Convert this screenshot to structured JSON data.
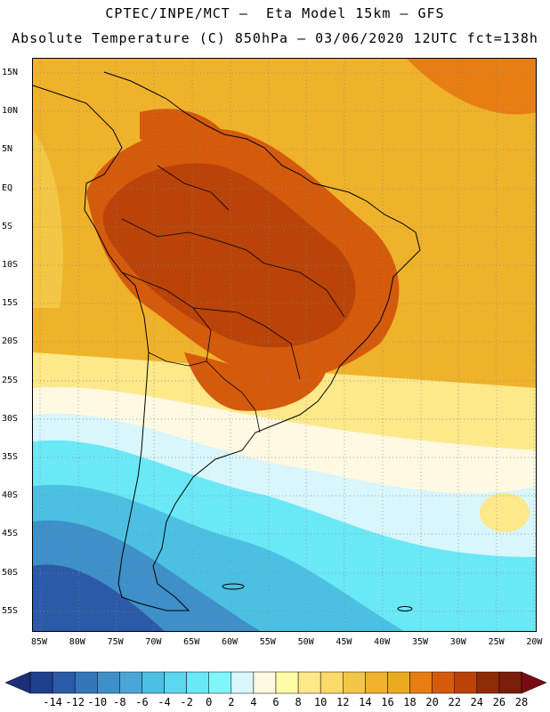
{
  "header": {
    "title_line1": "CPTEC/INPE/MCT –  Eta Model 15km – GFS",
    "title_line2": "Absolute Temperature (C) 850hPa – 03/06/2020 12UTC fct=138h"
  },
  "map": {
    "latitude_labels": [
      "15N",
      "10N",
      "5N",
      "EQ",
      "5S",
      "10S",
      "15S",
      "20S",
      "25S",
      "30S",
      "35S",
      "40S",
      "45S",
      "50S",
      "55S"
    ],
    "longitude_labels": [
      "85W",
      "80W",
      "75W",
      "70W",
      "65W",
      "60W",
      "55W",
      "50W",
      "45W",
      "40W",
      "35W",
      "30W",
      "25W",
      "20W"
    ],
    "gridlines": "dotted"
  },
  "colorbar": {
    "labels": [
      "-14",
      "-12",
      "-10",
      "-8",
      "-6",
      "-4",
      "-2",
      "0",
      "2",
      "4",
      "6",
      "8",
      "10",
      "12",
      "14",
      "16",
      "18",
      "20",
      "22",
      "24",
      "26",
      "28"
    ],
    "colors": [
      "#1f3f8f",
      "#2a5aa8",
      "#3376ba",
      "#3f8fc9",
      "#4aa6d6",
      "#4cc0e2",
      "#5ad6ee",
      "#6be8f5",
      "#7ff6fb",
      "#d8f6fb",
      "#fff8e2",
      "#fffca8",
      "#fde88a",
      "#fbd96a",
      "#f3c646",
      "#f0b12c",
      "#ecaa20",
      "#e77d13",
      "#d45a0c",
      "#b94308",
      "#8e2c06",
      "#7a1e0a"
    ],
    "under_color": "#1c2f7a",
    "over_color": "#7a0b14",
    "unit": "C"
  }
}
